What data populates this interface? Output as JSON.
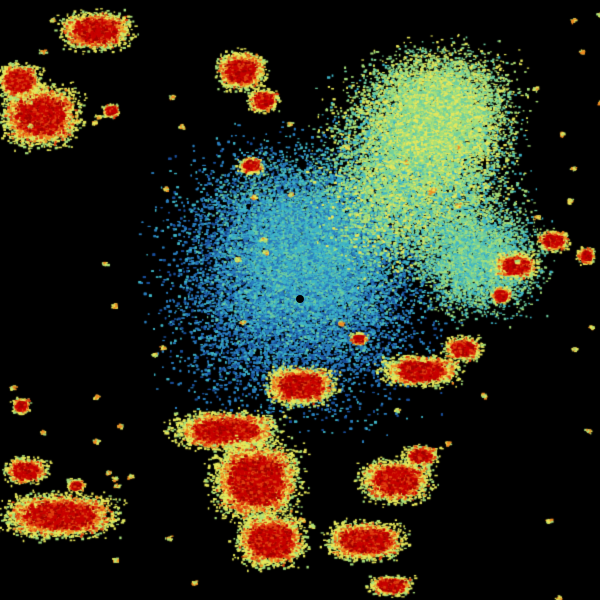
{
  "image": {
    "kind": "weather-radar-reflectivity",
    "background": "#000000",
    "palette": {
      "dark_blue": "#1a4f9c",
      "blue": "#2a7fc0",
      "cyan": "#3fb6c8",
      "teal_green": "#6fd0a0",
      "light_green": "#a8e07a",
      "yellow": "#e8e85a",
      "orange": "#f08a20",
      "red_orange": "#e04010",
      "red": "#c80000",
      "dark_red": "#a00000"
    },
    "radar_site_marker": "black-dot"
  }
}
